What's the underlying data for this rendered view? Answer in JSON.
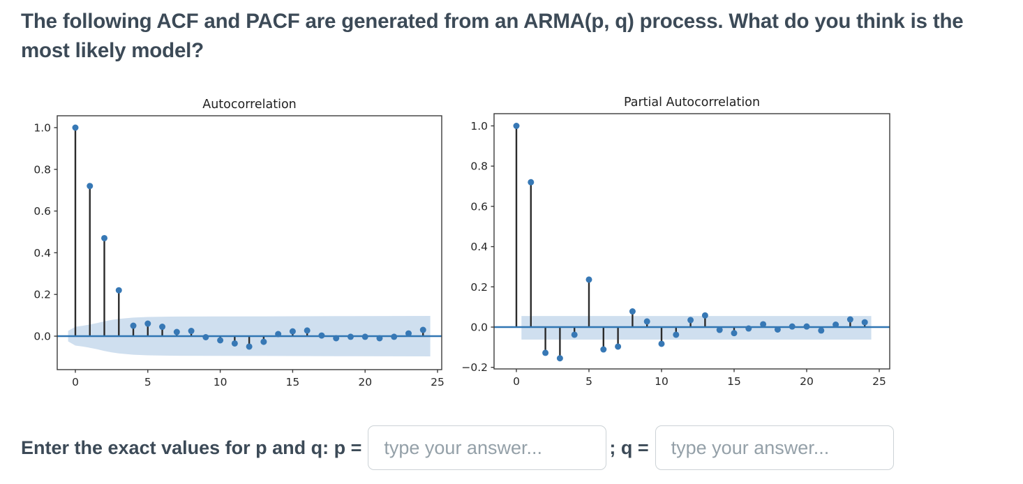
{
  "question": {
    "text": "The following ACF and PACF are generated from an ARMA(p, q) process. What do you think is the most likely model?"
  },
  "answer_section": {
    "prompt": "Enter the exact values for p and q: p =",
    "separator": "; q =",
    "p_input": {
      "value": "",
      "placeholder": "type your answer..."
    },
    "q_input": {
      "value": "",
      "placeholder": "type your answer..."
    }
  },
  "colors": {
    "marker": "#3778b5",
    "stem": "#2b2b2b",
    "zero_line": "#3076b3",
    "band": "#cfdfef",
    "spine": "#3a3a3a",
    "tick_text": "#262626",
    "title_text": "#1f1f1f",
    "question_text": "#3c4a57",
    "placeholder_text": "#94a0a8"
  },
  "chart_data": [
    {
      "type": "stem",
      "title": "Autocorrelation",
      "x": [
        0,
        1,
        2,
        3,
        4,
        5,
        6,
        7,
        8,
        9,
        10,
        11,
        12,
        13,
        14,
        15,
        16,
        17,
        18,
        19,
        20,
        21,
        22,
        23,
        24
      ],
      "values": [
        1.0,
        0.72,
        0.47,
        0.22,
        0.05,
        0.06,
        0.045,
        0.02,
        0.025,
        -0.005,
        -0.02,
        -0.035,
        -0.05,
        -0.027,
        0.01,
        0.023,
        0.027,
        0.003,
        -0.01,
        -0.003,
        -0.003,
        -0.01,
        -0.003,
        0.013,
        0.03
      ],
      "xtick_labels": [
        "0",
        "5",
        "10",
        "15",
        "20",
        "25"
      ],
      "xtick_values": [
        0,
        5,
        10,
        15,
        20,
        25
      ],
      "ytick_labels": [
        "1.0",
        "0.8",
        "0.6",
        "0.4",
        "0.2",
        "0.0"
      ],
      "ytick_values": [
        1.0,
        0.8,
        0.6,
        0.4,
        0.2,
        0.0
      ],
      "xlim": [
        -1.25,
        25.3
      ],
      "ylim": [
        -0.16,
        1.06
      ],
      "grid": false,
      "conf_band": {
        "shape": "varying",
        "note": "95% confidence band, widens with lag",
        "lags": [
          -0.5,
          0.0,
          0.5,
          1.0,
          1.5,
          2.0,
          2.5,
          3.0,
          4.0,
          5.0,
          6.5,
          9.0,
          13.0,
          18.0,
          24.5
        ],
        "half_widths": [
          0.025,
          0.045,
          0.05,
          0.056,
          0.063,
          0.071,
          0.078,
          0.083,
          0.089,
          0.092,
          0.0935,
          0.0945,
          0.095,
          0.096,
          0.097
        ]
      }
    },
    {
      "type": "stem",
      "title": "Partial Autocorrelation",
      "x": [
        0,
        1,
        2,
        3,
        4,
        5,
        6,
        7,
        8,
        9,
        10,
        11,
        12,
        13,
        14,
        15,
        16,
        17,
        18,
        19,
        20,
        21,
        22,
        23,
        24
      ],
      "values": [
        1.0,
        0.72,
        -0.128,
        -0.155,
        -0.038,
        0.236,
        -0.111,
        -0.097,
        0.078,
        0.028,
        -0.083,
        -0.038,
        0.035,
        0.058,
        -0.014,
        -0.03,
        -0.007,
        0.014,
        -0.012,
        0.003,
        0.003,
        -0.017,
        0.012,
        0.038,
        0.024
      ],
      "xtick_labels": [
        "0",
        "5",
        "10",
        "15",
        "20",
        "25"
      ],
      "xtick_values": [
        0,
        5,
        10,
        15,
        20,
        25
      ],
      "ytick_labels": [
        "1.0",
        "0.8",
        "0.6",
        "0.4",
        "0.2",
        "0.0",
        "−0.2"
      ],
      "ytick_values": [
        1.0,
        0.8,
        0.6,
        0.4,
        0.2,
        0.0,
        -0.2
      ],
      "xlim": [
        -1.55,
        25.7
      ],
      "ylim": [
        -0.205,
        1.06
      ],
      "grid": false,
      "conf_band": {
        "shape": "constant",
        "note": "95% confidence band",
        "x_start": 0.35,
        "x_end": 24.45,
        "top": 0.055,
        "bottom": -0.062
      }
    }
  ]
}
